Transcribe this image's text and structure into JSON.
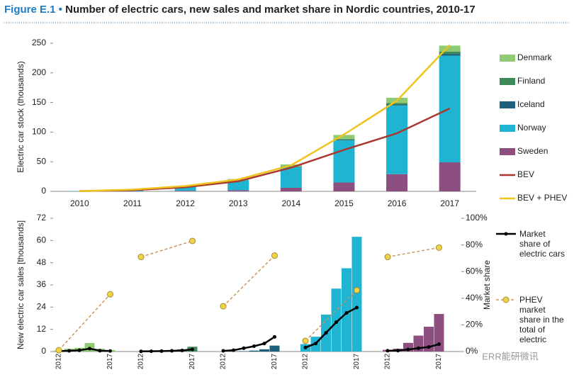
{
  "header": {
    "figure_label": "Figure E.1 •",
    "title": "Number of electric cars, new sales and market share in Nordic countries, 2010-17",
    "watermark": "ERR能研微讯"
  },
  "chart_data": [
    {
      "type": "bar",
      "stacked": true,
      "ylabel": "Electric car stock (thousands)",
      "categories": [
        "2010",
        "2011",
        "2012",
        "2013",
        "2014",
        "2015",
        "2016",
        "2017"
      ],
      "ylim": [
        0,
        250
      ],
      "yticks": [
        0,
        50,
        100,
        150,
        200,
        250
      ],
      "legend": "right",
      "series": [
        {
          "name": "Denmark",
          "kind": "bar",
          "color": "#8fcb72",
          "values": [
            0,
            0.5,
            1,
            1.5,
            3.5,
            7,
            9,
            10
          ]
        },
        {
          "name": "Finland",
          "kind": "bar",
          "color": "#3f8a58",
          "values": [
            0,
            0,
            0.1,
            0.2,
            0.6,
            1.5,
            2.5,
            4
          ]
        },
        {
          "name": "Iceland",
          "kind": "bar",
          "color": "#1c607e",
          "values": [
            0,
            0,
            0,
            0.1,
            0.3,
            0.8,
            1.5,
            3
          ]
        },
        {
          "name": "Norway",
          "kind": "bar",
          "color": "#1fb4d2",
          "values": [
            0.4,
            2,
            7,
            17,
            35,
            71,
            116,
            180
          ]
        },
        {
          "name": "Sweden",
          "kind": "bar",
          "color": "#8c4f80",
          "values": [
            0,
            0.2,
            1,
            2,
            6,
            15,
            29,
            49
          ]
        },
        {
          "name": "BEV",
          "kind": "line",
          "color": "#a8392c",
          "values": [
            0.4,
            2,
            7,
            17,
            40,
            70,
            98,
            140
          ]
        },
        {
          "name": "BEV + PHEV",
          "kind": "line",
          "color": "#efc31d",
          "values": [
            0.4,
            3,
            9,
            20,
            44,
            96,
            153,
            247
          ]
        }
      ]
    },
    {
      "type": "bar",
      "ylabel": "New electric car sales [thousands]",
      "y2label": "Market share",
      "ylim": [
        0,
        72
      ],
      "yticks": [
        0,
        12,
        24,
        36,
        48,
        60,
        72
      ],
      "y2lim": [
        0,
        100
      ],
      "y2ticks": [
        {
          "value": 0,
          "label": "0%"
        },
        {
          "value": 20,
          "label": "20%"
        },
        {
          "value": 40,
          "label": "40%"
        },
        {
          "value": 60,
          "label": "60%"
        },
        {
          "value": 80,
          "label": "80%"
        },
        {
          "value": 100,
          "label": "100%"
        }
      ],
      "groups": [
        {
          "color": "#8fcb72",
          "categories": [
            "2012",
            null,
            null,
            null,
            null,
            "2017"
          ],
          "values": [
            0.5,
            1.5,
            2,
            4.6,
            1.5,
            0.8
          ]
        },
        {
          "color": "#3f8a58",
          "categories": [
            "2012",
            null,
            null,
            null,
            null,
            "2017"
          ],
          "values": [
            0.1,
            0.2,
            0.3,
            0.6,
            1.2,
            2.6
          ]
        },
        {
          "color": "#1c607e",
          "categories": [
            "2012",
            null,
            null,
            null,
            null,
            "2017"
          ],
          "values": [
            0.01,
            0.1,
            0.2,
            0.5,
            1.2,
            3.2
          ]
        },
        {
          "color": "#1fb4d2",
          "categories": [
            "2012",
            null,
            null,
            null,
            null,
            "2017"
          ],
          "values": [
            4,
            8,
            20,
            34,
            45,
            62
          ]
        },
        {
          "color": "#8c4f80",
          "categories": [
            "2012",
            null,
            null,
            null,
            null,
            "2017"
          ],
          "values": [
            0.9,
            1.5,
            4.7,
            8.6,
            13.4,
            20.3
          ]
        }
      ],
      "series": [
        {
          "name": "Market share of electric cars",
          "color": "#000000",
          "axis": "y2",
          "dash": false,
          "values": [
            [
              0.3,
              0.5,
              0.9,
              2.2,
              0.6,
              0.4
            ],
            [
              0.1,
              0.2,
              0.3,
              0.5,
              0.8,
              1.6
            ],
            [
              0.5,
              1,
              2.5,
              4,
              6,
              11
            ],
            [
              3,
              6,
              14,
              22,
              29,
              33
            ],
            [
              0.6,
              0.7,
              1.5,
              2.5,
              3.4,
              5.5
            ]
          ]
        },
        {
          "name": "PHEV market share in the total of electric",
          "color": "#c8955a",
          "marker": "#f0d448",
          "axis": "y2",
          "dash": true,
          "values": [
            [
              1,
              null,
              null,
              null,
              null,
              43
            ],
            [
              71,
              null,
              null,
              null,
              null,
              83
            ],
            [
              34,
              null,
              null,
              null,
              null,
              72
            ],
            [
              8,
              null,
              null,
              null,
              null,
              46
            ],
            [
              71,
              null,
              null,
              null,
              null,
              78
            ]
          ]
        }
      ]
    }
  ]
}
